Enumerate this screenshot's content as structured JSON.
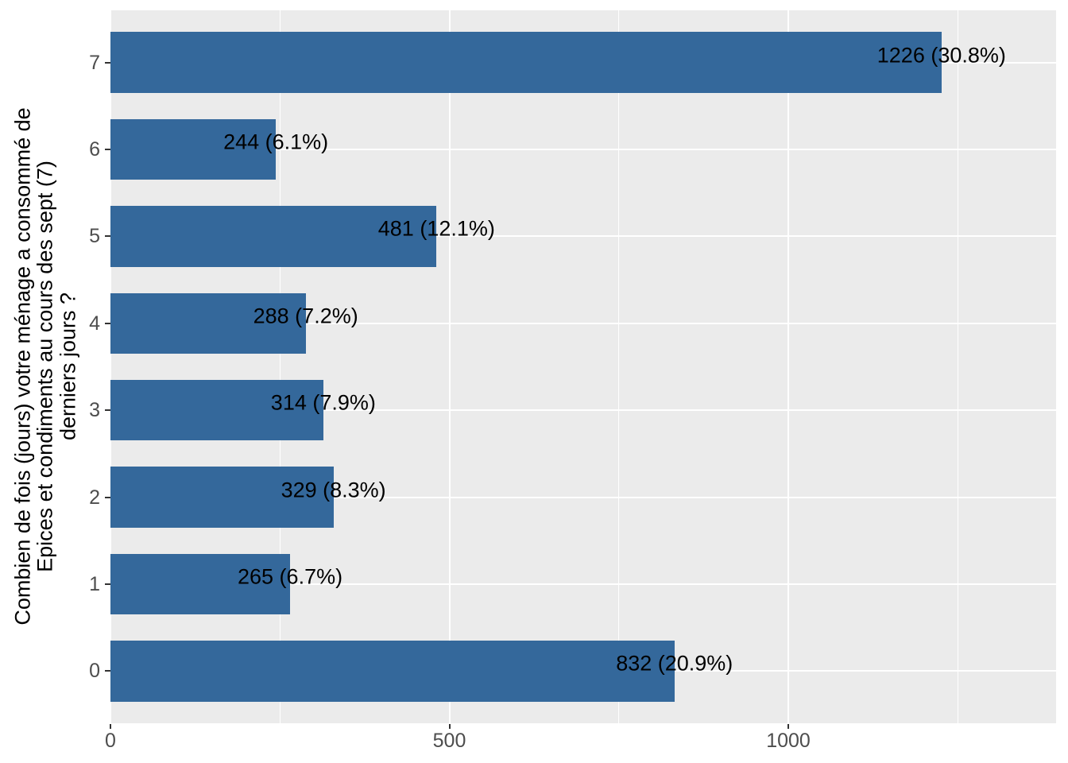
{
  "chart_data": {
    "type": "bar",
    "orientation": "horizontal",
    "title": "",
    "xlabel": "",
    "ylabel": "Combien de fois (jours) votre ménage a consommé de\nEpices et condiments au cours des sept (7)\nderniers jours ?",
    "categories": [
      "7",
      "6",
      "5",
      "4",
      "3",
      "2",
      "1",
      "0"
    ],
    "values": [
      1226,
      244,
      481,
      288,
      314,
      329,
      265,
      832
    ],
    "percents": [
      30.8,
      6.1,
      12.1,
      7.2,
      7.9,
      8.3,
      6.7,
      20.9
    ],
    "bar_labels": [
      "1226 (30.8%)",
      "244 (6.1%)",
      "481 (12.1%)",
      "288 (7.2%)",
      "314 (7.9%)",
      "329 (8.3%)",
      "265 (6.7%)",
      "832 (20.9%)"
    ],
    "x_ticks": [
      0,
      500,
      1000
    ],
    "x_tick_labels": [
      "0",
      "500",
      "1000"
    ],
    "x_minor_ticks": [
      250,
      750,
      1250
    ],
    "xlim": [
      0,
      1395
    ],
    "legend": "none",
    "grid": "on",
    "colors": {
      "bar_fill": "#34689B",
      "panel_background": "#EBEBEB",
      "gridline": "#FFFFFF",
      "tick_text": "#4D4D4D",
      "tick_mark": "#333333",
      "label_text": "#000000",
      "outer_background": "#FFFFFF"
    }
  }
}
